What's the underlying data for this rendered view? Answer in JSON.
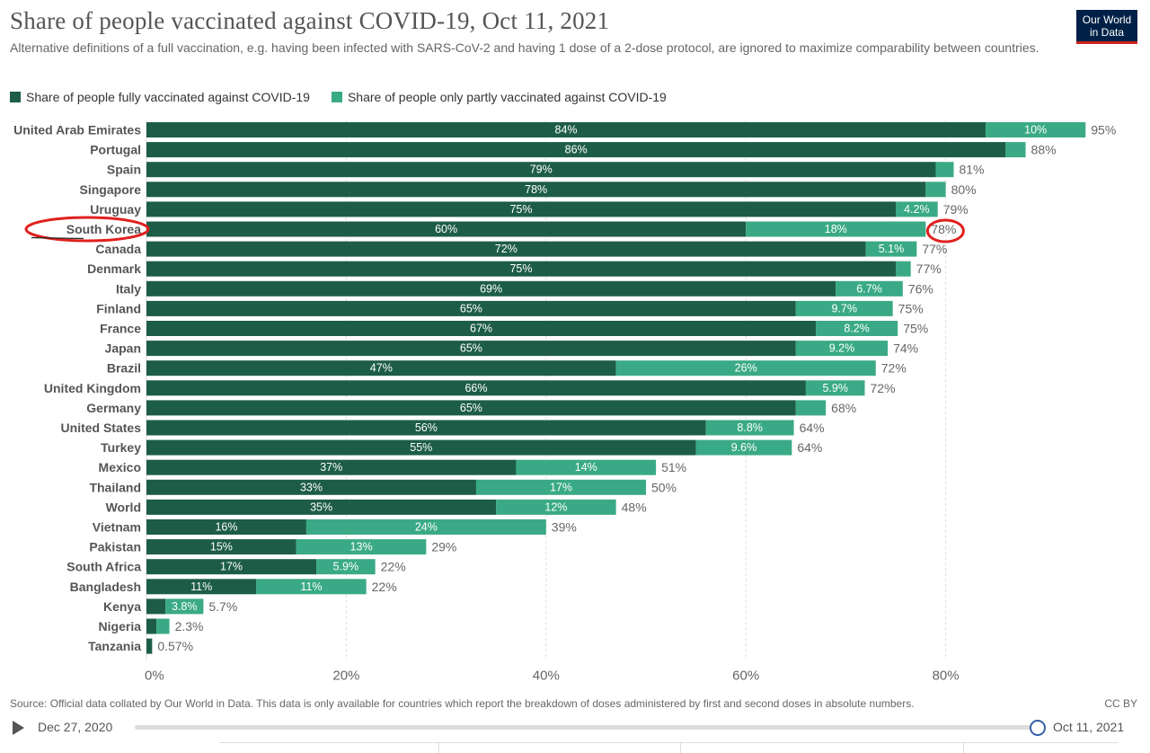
{
  "header": {
    "title": "Share of people vaccinated against COVID-19, Oct 11, 2021",
    "subtitle": "Alternative definitions of a full vaccination, e.g. having been infected with SARS-CoV-2 and having 1 dose of a 2-dose protocol, are ignored to maximize comparability between countries.",
    "logo_line1": "Our World",
    "logo_line2": "in Data"
  },
  "colors": {
    "fully": "#1d5d47",
    "partly": "#3aaa86",
    "annotation": "#e0201e",
    "grid": "#dddddd"
  },
  "chart_data": {
    "type": "bar",
    "orientation": "horizontal",
    "stacked": true,
    "categories": [
      "United Arab Emirates",
      "Portugal",
      "Spain",
      "Singapore",
      "Uruguay",
      "South Korea",
      "Canada",
      "Denmark",
      "Italy",
      "Finland",
      "France",
      "Japan",
      "Brazil",
      "United Kingdom",
      "Germany",
      "United States",
      "Turkey",
      "Mexico",
      "Thailand",
      "World",
      "Vietnam",
      "Pakistan",
      "South Africa",
      "Bangladesh",
      "Kenya",
      "Nigeria",
      "Tanzania"
    ],
    "series": [
      {
        "name": "Share of people fully vaccinated against COVID-19",
        "values": [
          84,
          86,
          79,
          78,
          75,
          60,
          72,
          75,
          69,
          65,
          67,
          65,
          47,
          66,
          65,
          56,
          55,
          37,
          33,
          35,
          16,
          15,
          17,
          11,
          1.9,
          1,
          0.57
        ],
        "labels": [
          "84%",
          "86%",
          "79%",
          "78%",
          "75%",
          "60%",
          "72%",
          "75%",
          "69%",
          "65%",
          "67%",
          "65%",
          "47%",
          "66%",
          "65%",
          "56%",
          "55%",
          "37%",
          "33%",
          "35%",
          "16%",
          "15%",
          "17%",
          "11%",
          "",
          "",
          ""
        ]
      },
      {
        "name": "Share of people only partly vaccinated against COVID-19",
        "values": [
          10,
          2,
          1.8,
          2,
          4.2,
          18,
          5.1,
          1.5,
          6.7,
          9.7,
          8.2,
          9.2,
          26,
          5.9,
          3,
          8.8,
          9.6,
          14,
          17,
          12,
          24,
          13,
          5.9,
          11,
          3.8,
          1.3,
          0
        ],
        "labels": [
          "10%",
          "",
          "",
          "",
          "4.2%",
          "18%",
          "5.1%",
          "",
          "6.7%",
          "9.7%",
          "8.2%",
          "9.2%",
          "26%",
          "5.9%",
          "",
          "8.8%",
          "9.6%",
          "14%",
          "17%",
          "12%",
          "24%",
          "13%",
          "5.9%",
          "11%",
          "3.8%",
          "",
          ""
        ]
      }
    ],
    "totals": [
      "95%",
      "88%",
      "81%",
      "80%",
      "79%",
      "78%",
      "77%",
      "77%",
      "76%",
      "75%",
      "75%",
      "74%",
      "72%",
      "72%",
      "68%",
      "64%",
      "64%",
      "51%",
      "50%",
      "48%",
      "39%",
      "29%",
      "22%",
      "22%",
      "5.7%",
      "2.3%",
      "0.57%"
    ],
    "xlim": [
      0,
      95
    ],
    "xticks": [
      0,
      20,
      40,
      60,
      80
    ],
    "xtick_labels": [
      "0%",
      "20%",
      "40%",
      "60%",
      "80%"
    ],
    "grid": true,
    "legend_position": "top-left",
    "highlight_category": "South Korea"
  },
  "footer": {
    "source": "Source: Official data collated by Our World in Data. This data is only available for countries which report the breakdown of doses administered by first and second doses in absolute numbers.",
    "license": "CC BY"
  },
  "timeline": {
    "start": "Dec 27, 2020",
    "end": "Oct 11, 2021"
  }
}
